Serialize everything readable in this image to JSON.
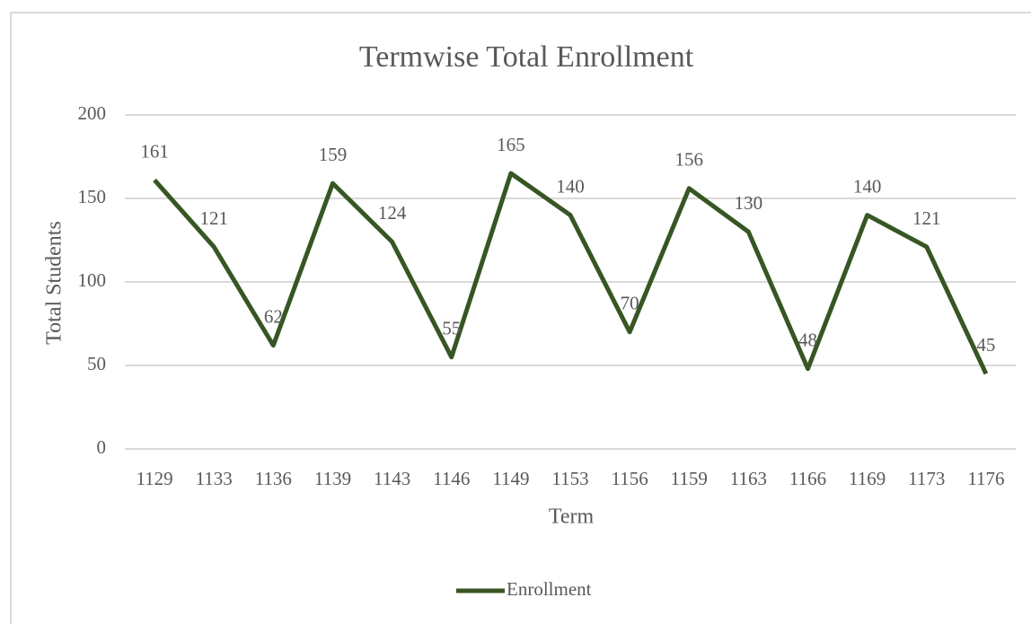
{
  "chart_data": {
    "type": "line",
    "title": "Termwise Total Enrollment",
    "x_label": "Term",
    "y_label": "Total Students",
    "categories": [
      "1129",
      "1133",
      "1136",
      "1139",
      "1143",
      "1146",
      "1149",
      "1153",
      "1156",
      "1159",
      "1163",
      "1166",
      "1169",
      "1173",
      "1176"
    ],
    "series": [
      {
        "name": "Enrollment",
        "color": "#375623",
        "values": [
          161,
          121,
          62,
          159,
          124,
          55,
          165,
          140,
          70,
          156,
          130,
          48,
          140,
          121,
          45
        ]
      }
    ],
    "ylim": [
      0,
      200
    ],
    "yticks": [
      0,
      50,
      100,
      150,
      200
    ],
    "grid": true,
    "legend": "bottom"
  }
}
